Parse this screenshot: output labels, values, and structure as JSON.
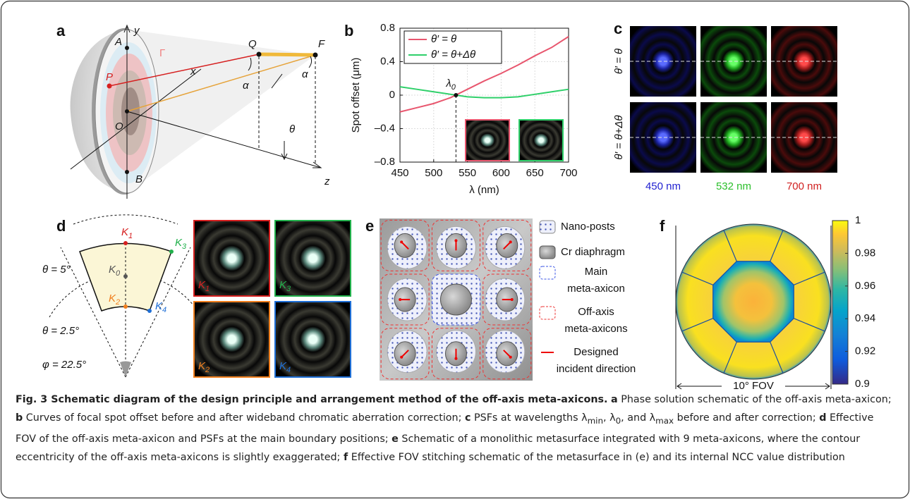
{
  "panel_labels": [
    "a",
    "b",
    "c",
    "d",
    "e",
    "f"
  ],
  "panel_a": {
    "labels": [
      "y",
      "A",
      "Γ",
      "x",
      "P",
      "Q",
      "F",
      "α",
      "α",
      "O",
      "θ",
      "z",
      "B"
    ]
  },
  "chart_data": {
    "type": "line",
    "xlabel": "λ (nm)",
    "ylabel": "Spot offset (μm)",
    "x": [
      450,
      475,
      500,
      525,
      550,
      575,
      600,
      625,
      650,
      675,
      700
    ],
    "series": [
      {
        "name": "θ′ = θ",
        "color": "#e8566e",
        "values": [
          -0.2,
          -0.15,
          -0.1,
          -0.03,
          0.07,
          0.17,
          0.26,
          0.36,
          0.47,
          0.57,
          0.7
        ]
      },
      {
        "name": "θ′ = θ+Δθ",
        "color": "#2fd06a",
        "values": [
          0.1,
          0.07,
          0.04,
          0.01,
          -0.02,
          -0.03,
          -0.03,
          -0.02,
          0.01,
          0.04,
          0.07
        ]
      }
    ],
    "xlim": [
      450,
      700
    ],
    "xticks": [
      450,
      500,
      550,
      600,
      650,
      700
    ],
    "ylim": [
      -0.8,
      0.8
    ],
    "yticks": [
      {
        "value": -0.8,
        "label": "–0.8"
      },
      {
        "value": -0.4,
        "label": "–0.4"
      },
      0,
      0.4,
      0.8
    ],
    "grid": true,
    "legend": "upper left",
    "annotation": {
      "text": [
        "λ",
        "0"
      ],
      "x": 533,
      "y": 0
    }
  },
  "panel_c": {
    "row_labels": [
      "θ′ = θ",
      "θ′ = θ+Δθ"
    ],
    "col_labels": [
      "450 nm",
      "532 nm",
      "700 nm"
    ],
    "col_colors": [
      "#1f1fd0",
      "#2bbf2b",
      "#d01f1f"
    ]
  },
  "panel_d": {
    "points": [
      [
        "K",
        "1"
      ],
      [
        "K",
        "3"
      ],
      [
        "K",
        "0"
      ],
      [
        "K",
        "2"
      ],
      [
        "K",
        "4"
      ]
    ],
    "angles": [
      "θ = 5°",
      "θ = 2.5°",
      "φ = 22.5°"
    ],
    "tiles": [
      [
        "K",
        "1"
      ],
      [
        "K",
        "3"
      ],
      [
        "K",
        "2"
      ],
      [
        "K",
        "4"
      ]
    ]
  },
  "panel_e": {
    "legend": [
      [
        "Nano-posts"
      ],
      [
        "Cr diaphragm"
      ],
      [
        "Main",
        "meta-axicon"
      ],
      [
        "Off-axis",
        "meta-axicons"
      ],
      [
        "Designed",
        "incident direction"
      ]
    ]
  },
  "panel_f": {
    "colorbar": {
      "lim": [
        0.9,
        1
      ],
      "ticks": [
        1,
        0.98,
        0.96,
        0.94,
        0.92,
        0.9
      ]
    },
    "fov": "10° FOV"
  },
  "caption": {
    "title": "Fig. 3 Schematic diagram of the design principle and arrangement method of the off-axis meta-axicons.",
    "items": [
      {
        "label": "a",
        "text": [
          "Phase solution schematic of the off-axis meta-axicon;"
        ]
      },
      {
        "label": "b",
        "text": [
          "Curves of focal spot offset before and after wideband chromatic aberration correction;"
        ]
      },
      {
        "label": "c",
        "text": [
          "PSFs at wavelengths λ",
          "min",
          ", λ",
          "0",
          ", and λ",
          "max",
          " before and after correction;"
        ]
      },
      {
        "label": "d",
        "text": [
          "Effective FOV of the off-axis meta-axicon and PSFs at the main boundary positions;"
        ]
      },
      {
        "label": "e",
        "text": [
          "Schematic of a monolithic metasurface integrated with 9 meta-axicons, where the contour eccentricity of the off-axis meta-axicons is slightly exaggerated;"
        ]
      },
      {
        "label": "f",
        "text": [
          "Effective FOV stitching schematic of the metasurface in (e) and its internal NCC value distribution"
        ]
      }
    ]
  }
}
